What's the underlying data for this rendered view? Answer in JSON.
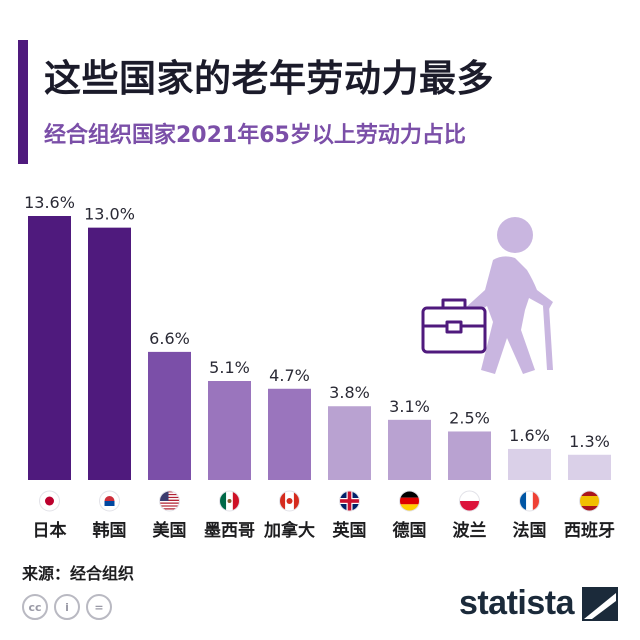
{
  "header": {
    "title": "这些国家的老年劳动力最多",
    "subtitle": "经合组织国家2021年65岁以上劳动力占比"
  },
  "chart_data": {
    "type": "bar",
    "title": "这些国家的老年劳动力最多",
    "subtitle": "经合组织国家2021年65岁以上劳动力占比",
    "categories": [
      "日本",
      "韩国",
      "美国",
      "墨西哥",
      "加拿大",
      "英国",
      "德国",
      "波兰",
      "法国",
      "西班牙"
    ],
    "values": [
      13.6,
      13.0,
      6.6,
      5.1,
      4.7,
      3.8,
      3.1,
      2.5,
      1.6,
      1.3
    ],
    "value_labels": [
      "13.6%",
      "13.0%",
      "6.6%",
      "5.1%",
      "4.7%",
      "3.8%",
      "3.1%",
      "2.5%",
      "1.6%",
      "1.3%"
    ],
    "bar_colors": [
      "#4f1a7d",
      "#4f1a7d",
      "#7b4fa8",
      "#9a75bd",
      "#9a75bd",
      "#b9a2d1",
      "#b9a2d1",
      "#b9a2d1",
      "#dad0e8",
      "#dad0e8"
    ],
    "flags": [
      "japan-flag",
      "korea-flag",
      "usa-flag",
      "mexico-flag",
      "canada-flag",
      "uk-flag",
      "germany-flag",
      "poland-flag",
      "france-flag",
      "spain-flag"
    ],
    "ylim": [
      0,
      14
    ],
    "grid": false,
    "xlabel": "",
    "ylabel": ""
  },
  "footer": {
    "source": "来源：经合组织",
    "brand": "statista",
    "license_icons": [
      "cc-icon",
      "by-icon",
      "nd-icon"
    ]
  },
  "colors": {
    "accent": "#4f1a7d",
    "illustration": "#c9b6e0"
  }
}
